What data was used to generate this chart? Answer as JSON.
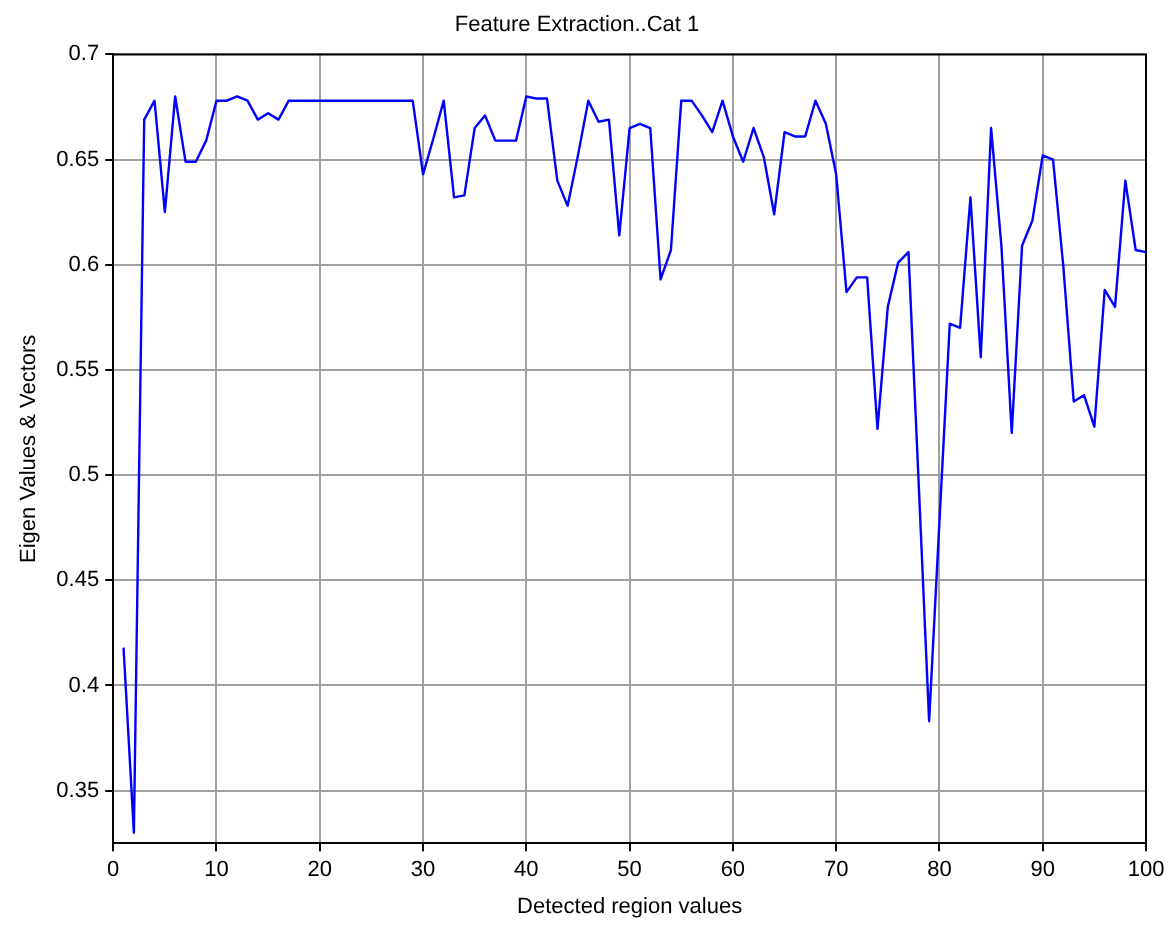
{
  "chart_data": {
    "type": "line",
    "title": "Feature Extraction..Cat 1",
    "xlabel": "Detected region values",
    "ylabel": "Eigen Values & Vectors",
    "x": [
      1,
      2,
      3,
      4,
      5,
      6,
      7,
      8,
      9,
      10,
      11,
      12,
      13,
      14,
      15,
      16,
      17,
      18,
      19,
      20,
      21,
      22,
      23,
      24,
      25,
      26,
      27,
      28,
      29,
      30,
      31,
      32,
      33,
      34,
      35,
      36,
      37,
      38,
      39,
      40,
      41,
      42,
      43,
      44,
      45,
      46,
      47,
      48,
      49,
      50,
      51,
      52,
      53,
      54,
      55,
      56,
      57,
      58,
      59,
      60,
      61,
      62,
      63,
      64,
      65,
      66,
      67,
      68,
      69,
      70,
      71,
      72,
      73,
      74,
      75,
      76,
      77,
      78,
      79,
      80,
      81,
      82,
      83,
      84,
      85,
      86,
      87,
      88,
      89,
      90,
      91,
      92,
      93,
      94,
      95,
      96,
      97,
      98,
      99,
      100
    ],
    "series": [
      {
        "color": "#0000ff",
        "values": [
          0.418,
          0.33,
          0.669,
          0.678,
          0.625,
          0.68,
          0.649,
          0.649,
          0.659,
          0.678,
          0.678,
          0.68,
          0.678,
          0.669,
          0.672,
          0.669,
          0.678,
          0.678,
          0.678,
          0.678,
          0.678,
          0.678,
          0.678,
          0.678,
          0.678,
          0.678,
          0.678,
          0.678,
          0.678,
          0.643,
          0.66,
          0.678,
          0.632,
          0.633,
          0.665,
          0.671,
          0.659,
          0.659,
          0.659,
          0.68,
          0.679,
          0.679,
          0.64,
          0.628,
          0.652,
          0.678,
          0.668,
          0.669,
          0.614,
          0.665,
          0.667,
          0.665,
          0.593,
          0.607,
          0.678,
          0.678,
          0.671,
          0.663,
          0.678,
          0.661,
          0.649,
          0.665,
          0.651,
          0.624,
          0.663,
          0.661,
          0.661,
          0.678,
          0.667,
          0.643,
          0.587,
          0.594,
          0.594,
          0.522,
          0.58,
          0.601,
          0.606,
          0.495,
          0.383,
          0.478,
          0.572,
          0.57,
          0.632,
          0.556,
          0.665,
          0.609,
          0.52,
          0.609,
          0.621,
          0.652,
          0.65,
          0.599,
          0.535,
          0.538,
          0.523,
          0.588,
          0.58,
          0.64,
          0.607,
          0.606
        ]
      }
    ],
    "xlim": [
      0,
      100
    ],
    "xticks": [
      0,
      10,
      20,
      30,
      40,
      50,
      60,
      70,
      80,
      90,
      100
    ],
    "ylim": [
      0.325,
      0.7
    ],
    "yticks": [
      0.35,
      0.4,
      0.45,
      0.5,
      0.55,
      0.6,
      0.65,
      0.7
    ],
    "grid": true,
    "legend": false,
    "marker": "none",
    "line_style": "solid"
  }
}
